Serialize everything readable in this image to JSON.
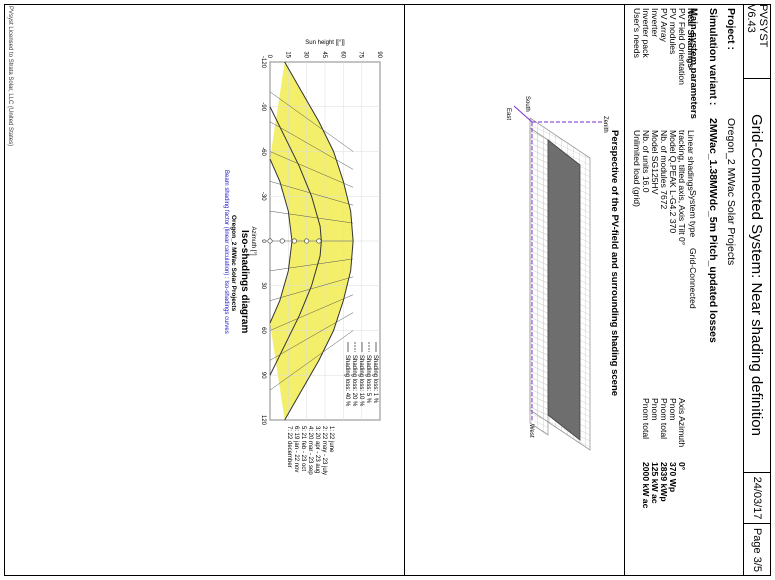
{
  "header": {
    "software": "PVSYST V6.43",
    "title": "Grid-Connected System: Near shading definition",
    "date": "24/03/17",
    "page": "Page 3/5"
  },
  "project": {
    "project_label": "Project :",
    "project_value": "Oregon_2 MWac Solar Projects",
    "variant_label": "Simulation variant :",
    "variant_value": "2MWac_1.38MWdc_5m Pitch_updated losses"
  },
  "main_params": {
    "heading": "Main system parameters",
    "system_type_label": "System type",
    "system_type_value": "Grid-Connected",
    "rows": [
      {
        "label": "Near Shadings",
        "bold": true,
        "mid": "Linear shadings",
        "right_label": "",
        "right_value": ""
      },
      {
        "label": "PV Field Orientation",
        "bold": false,
        "mid": "tracking, tilted axis, Axis Tilt    0°",
        "right_label": "Axis Azimuth",
        "right_value": "0°"
      },
      {
        "label": "PV modules",
        "bold": false,
        "mid": "Model    Q.PEAK L-G4.2 370",
        "right_label": "Pnom",
        "right_value": "370 Wp"
      },
      {
        "label": "PV Array",
        "bold": false,
        "mid": "Nb. of modules    7672",
        "right_label": "Pnom total",
        "right_value": "2839 kWp"
      },
      {
        "label": "Inverter",
        "bold": false,
        "mid": "Model    SG125HV",
        "right_label": "Pnom",
        "right_value": "125 kW ac"
      },
      {
        "label": "Inverter pack",
        "bold": false,
        "mid": "Nb. of units    16.0",
        "right_label": "Pnom total",
        "right_value": "2000 kW ac"
      },
      {
        "label": "User's needs",
        "bold": false,
        "mid": "Unlimited load (grid)",
        "right_label": "",
        "right_value": ""
      }
    ]
  },
  "perspective": {
    "caption": "Perspective of the PV-field and surrounding shading scene",
    "axis_west": "West",
    "axis_zenith": "Zenith",
    "axis_south": "South",
    "axis_east": "East"
  },
  "iso": {
    "title": "Iso-shadings diagram",
    "subtitle1": "Oregon_2 MWac Solar Projects",
    "subtitle2": "Beam shading factor (linear calculation) : Iso-shadings curves",
    "xlabel": "Azimuth [°]",
    "ylabel": "Sun height [[°]]",
    "x_ticks": [
      "-120",
      "-90",
      "-60",
      "-30",
      "0",
      "30",
      "60",
      "90",
      "120"
    ],
    "y_ticks": [
      "0",
      "15",
      "30",
      "45",
      "60",
      "75",
      "90"
    ],
    "legend": [
      "Shading loss: 1 %",
      "Shading loss: 5 %",
      "Shading loss: 10 %",
      "Shading loss: 20 %",
      "Shading loss: 40 %"
    ],
    "dates": [
      "1: 22 june",
      "2: 22 may - 23 july",
      "3: 20 apr - 23 aug",
      "4: 20 mar - 23 sep",
      "5: 21 feb - 23 oct",
      "6: 19 jan - 22 nov",
      "7: 22 december"
    ],
    "chart_data": {
      "type": "line",
      "xlabel": "Azimuth [°]",
      "ylabel": "Sun height [[°]]",
      "xlim": [
        -120,
        120
      ],
      "ylim": [
        0,
        90
      ],
      "grid": true,
      "legend_placement": "top-right",
      "series": [
        {
          "name": "1: 22 june",
          "x": [
            -120,
            -100,
            -80,
            -60,
            -40,
            -20,
            0,
            20,
            40,
            60,
            80,
            100,
            120
          ],
          "y": [
            12,
            26,
            40,
            52,
            60,
            66,
            68,
            66,
            60,
            52,
            40,
            26,
            12
          ]
        },
        {
          "name": "4: 20 mar - 23 sep",
          "x": [
            -90,
            -70,
            -50,
            -30,
            -10,
            0,
            10,
            30,
            50,
            70,
            90
          ],
          "y": [
            0,
            12,
            24,
            34,
            41,
            42,
            41,
            34,
            24,
            12,
            0
          ]
        },
        {
          "name": "7: 22 december",
          "x": [
            -55,
            -40,
            -20,
            0,
            20,
            40,
            55
          ],
          "y": [
            0,
            8,
            15,
            18,
            15,
            8,
            0
          ]
        }
      ]
    }
  },
  "footer": "PVsyst Licensed to  Strata Solar, LLC (United States)"
}
